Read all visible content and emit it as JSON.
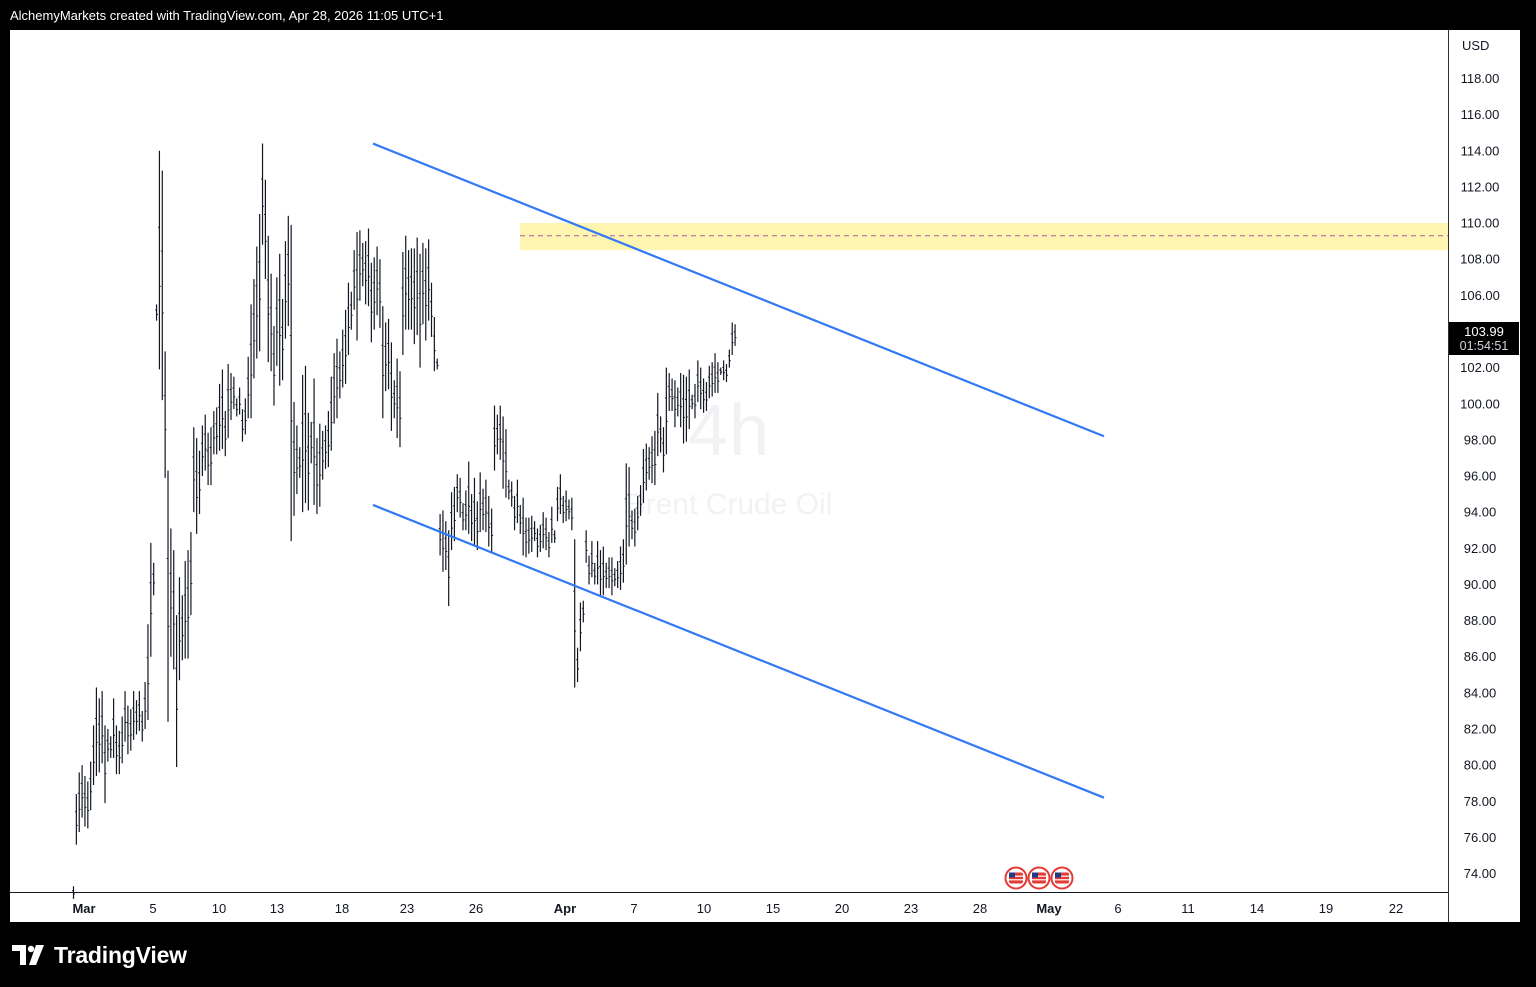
{
  "header": {
    "caption": "AlchemyMarkets created with TradingView.com, Apr 28, 2026 11:05 UTC+1"
  },
  "watermark": {
    "interval": "4h",
    "symbol": "Brent Crude Oil"
  },
  "price_axis": {
    "currency": "USD",
    "last_price": "103.99",
    "countdown": "01:54:51"
  },
  "footer": {
    "brand": "TradingView",
    "logo_icon": "tradingview-logo-icon"
  },
  "colors": {
    "background": "#ffffff",
    "frame": "#000000",
    "trendline": "#3179f5",
    "resistance_zone": "#fff4b0",
    "resistance_midline": "#a05fa6",
    "bars": "#131722"
  },
  "events": {
    "icon": "us-flag-icon",
    "count": 3
  },
  "chart_data": {
    "type": "ohlc",
    "title": "",
    "interval": "4h",
    "ylim": [
      73,
      119.5
    ],
    "y_ticks": [
      "74.00",
      "76.00",
      "78.00",
      "80.00",
      "82.00",
      "84.00",
      "86.00",
      "88.00",
      "90.00",
      "92.00",
      "94.00",
      "96.00",
      "98.00",
      "100.00",
      "102.00",
      "104.00",
      "106.00",
      "108.00",
      "110.00",
      "112.00",
      "114.00",
      "116.00",
      "118.00"
    ],
    "x_ticks": [
      "Mar",
      "5",
      "10",
      "13",
      "18",
      "23",
      "26",
      "Apr",
      "7",
      "10",
      "15",
      "20",
      "23",
      "28",
      "May",
      "6",
      "11",
      "14",
      "19",
      "22"
    ],
    "bars_hl": [
      [
        73.3,
        72.6
      ],
      [
        78.4,
        75.6
      ],
      [
        79.6,
        76.3
      ],
      [
        80.0,
        77.1
      ],
      [
        79.4,
        76.6
      ],
      [
        79.1,
        76.5
      ],
      [
        80.2,
        77.5
      ],
      [
        82.2,
        78.9
      ],
      [
        84.3,
        79.4
      ],
      [
        83.7,
        79.6
      ],
      [
        84.1,
        80.1
      ],
      [
        82.2,
        77.9
      ],
      [
        82.0,
        80.2
      ],
      [
        81.6,
        80.4
      ],
      [
        83.7,
        80.4
      ],
      [
        82.2,
        79.5
      ],
      [
        81.9,
        79.5
      ],
      [
        82.7,
        80.1
      ],
      [
        84.1,
        81.3
      ],
      [
        83.3,
        80.6
      ],
      [
        83.1,
        80.8
      ],
      [
        84.1,
        81.4
      ],
      [
        83.6,
        81.7
      ],
      [
        84.1,
        81.9
      ],
      [
        83.0,
        81.3
      ],
      [
        84.6,
        82.0
      ],
      [
        87.8,
        82.5
      ],
      [
        92.3,
        86.0
      ],
      [
        91.2,
        89.4
      ],
      [
        105.5,
        104.6
      ],
      [
        114.0,
        101.9
      ],
      [
        112.9,
        100.2
      ],
      [
        102.9,
        95.9
      ],
      [
        96.3,
        82.4
      ],
      [
        93.1,
        86.0
      ],
      [
        91.9,
        85.3
      ],
      [
        88.3,
        79.9
      ],
      [
        90.4,
        84.7
      ],
      [
        89.4,
        85.8
      ],
      [
        91.3,
        85.9
      ],
      [
        91.9,
        85.9
      ],
      [
        92.9,
        88.3
      ],
      [
        98.7,
        94.0
      ],
      [
        98.1,
        92.8
      ],
      [
        97.4,
        93.9
      ],
      [
        98.8,
        96.0
      ],
      [
        99.4,
        96.3
      ],
      [
        98.4,
        95.5
      ],
      [
        98.7,
        95.5
      ],
      [
        99.6,
        97.2
      ],
      [
        99.8,
        97.2
      ],
      [
        101.1,
        97.4
      ],
      [
        101.9,
        97.5
      ],
      [
        99.6,
        97.1
      ],
      [
        102.2,
        98.1
      ],
      [
        101.7,
        99.1
      ],
      [
        101.5,
        99.7
      ],
      [
        100.3,
        99.3
      ],
      [
        100.9,
        99.4
      ],
      [
        99.7,
        97.9
      ],
      [
        100.3,
        98.3
      ],
      [
        102.6,
        99.2
      ],
      [
        105.5,
        99.2
      ],
      [
        106.9,
        101.4
      ],
      [
        108.7,
        102.5
      ],
      [
        110.5,
        102.9
      ],
      [
        114.4,
        108.8
      ],
      [
        112.4,
        106.9
      ],
      [
        109.3,
        102.3
      ],
      [
        107.2,
        101.8
      ],
      [
        104.3,
        99.9
      ],
      [
        107.0,
        102.1
      ],
      [
        108.3,
        101.0
      ],
      [
        105.8,
        101.3
      ],
      [
        109.0,
        103.6
      ],
      [
        110.4,
        104.3
      ],
      [
        109.9,
        92.4
      ],
      [
        100.1,
        93.8
      ],
      [
        98.8,
        95.0
      ],
      [
        97.6,
        95.9
      ],
      [
        101.6,
        94.0
      ],
      [
        102.1,
        94.5
      ],
      [
        99.5,
        94.1
      ],
      [
        99.0,
        96.7
      ],
      [
        101.4,
        94.4
      ],
      [
        98.1,
        93.9
      ],
      [
        98.9,
        94.3
      ],
      [
        98.5,
        95.8
      ],
      [
        98.8,
        96.4
      ],
      [
        99.6,
        96.5
      ],
      [
        101.5,
        97.4
      ],
      [
        102.8,
        98.9
      ],
      [
        103.6,
        99.2
      ],
      [
        102.9,
        100.3
      ],
      [
        104.1,
        100.9
      ],
      [
        105.2,
        101.1
      ],
      [
        106.7,
        102.7
      ],
      [
        106.2,
        104.1
      ],
      [
        108.5,
        105.2
      ],
      [
        109.5,
        103.5
      ],
      [
        109.6,
        105.7
      ],
      [
        108.9,
        106.5
      ],
      [
        109.0,
        105.5
      ],
      [
        109.7,
        105.4
      ],
      [
        107.8,
        103.4
      ],
      [
        108.1,
        104.1
      ],
      [
        108.7,
        104.9
      ],
      [
        108.0,
        104.2
      ],
      [
        105.4,
        99.2
      ],
      [
        104.5,
        100.7
      ],
      [
        104.7,
        100.8
      ],
      [
        103.4,
        98.5
      ],
      [
        101.3,
        99.2
      ],
      [
        102.5,
        98.1
      ],
      [
        101.8,
        97.6
      ],
      [
        108.4,
        102.7
      ],
      [
        109.3,
        104.1
      ],
      [
        108.5,
        104.1
      ],
      [
        108.6,
        104.1
      ],
      [
        108.6,
        103.3
      ],
      [
        109.2,
        103.8
      ],
      [
        108.3,
        102.0
      ],
      [
        108.9,
        104.4
      ],
      [
        108.6,
        103.5
      ],
      [
        109.1,
        104.6
      ],
      [
        106.7,
        103.7
      ],
      [
        104.8,
        101.8
      ],
      [
        102.5,
        101.9
      ],
      [
        93.9,
        91.6
      ],
      [
        94.1,
        90.7
      ],
      [
        93.5,
        90.8
      ],
      [
        93.0,
        88.8
      ],
      [
        95.1,
        91.9
      ],
      [
        95.4,
        92.4
      ],
      [
        96.1,
        94.0
      ],
      [
        95.9,
        93.7
      ],
      [
        94.5,
        93.0
      ],
      [
        95.2,
        93.0
      ],
      [
        96.8,
        92.8
      ],
      [
        95.0,
        92.4
      ],
      [
        95.9,
        92.1
      ],
      [
        94.6,
        91.9
      ],
      [
        96.2,
        92.9
      ],
      [
        95.3,
        93.0
      ],
      [
        95.8,
        92.9
      ],
      [
        94.9,
        92.1
      ],
      [
        94.2,
        91.8
      ],
      [
        99.9,
        96.3
      ],
      [
        99.4,
        97.2
      ],
      [
        99.9,
        96.9
      ],
      [
        99.3,
        95.3
      ],
      [
        98.6,
        94.8
      ],
      [
        95.8,
        94.7
      ],
      [
        95.7,
        94.3
      ],
      [
        94.9,
        93.0
      ],
      [
        95.8,
        93.4
      ],
      [
        94.4,
        92.8
      ],
      [
        94.8,
        91.6
      ],
      [
        93.7,
        91.5
      ],
      [
        93.7,
        91.7
      ],
      [
        93.8,
        91.8
      ],
      [
        93.5,
        92.4
      ],
      [
        93.1,
        91.5
      ],
      [
        93.3,
        91.8
      ],
      [
        94.0,
        92.0
      ],
      [
        93.7,
        91.9
      ],
      [
        92.9,
        91.5
      ],
      [
        94.3,
        92.3
      ],
      [
        93.0,
        92.3
      ],
      [
        95.4,
        93.5
      ],
      [
        96.1,
        93.9
      ],
      [
        94.9,
        93.4
      ],
      [
        95.2,
        93.5
      ],
      [
        94.7,
        93.6
      ],
      [
        94.8,
        93.0
      ],
      [
        92.5,
        84.3
      ],
      [
        86.5,
        84.6
      ],
      [
        89.0,
        86.3
      ],
      [
        89.1,
        87.9
      ],
      [
        93.0,
        91.2
      ],
      [
        91.6,
        90.0
      ],
      [
        92.4,
        90.4
      ],
      [
        91.2,
        90.0
      ],
      [
        92.4,
        90.0
      ],
      [
        91.9,
        89.3
      ],
      [
        92.1,
        89.4
      ],
      [
        91.2,
        89.8
      ],
      [
        91.5,
        89.8
      ],
      [
        91.5,
        89.4
      ],
      [
        90.9,
        89.9
      ],
      [
        91.3,
        89.8
      ],
      [
        92.1,
        89.7
      ],
      [
        92.5,
        90.1
      ],
      [
        96.7,
        91.1
      ],
      [
        96.5,
        92.1
      ],
      [
        94.1,
        92.5
      ],
      [
        94.2,
        92.1
      ],
      [
        94.9,
        93.0
      ],
      [
        95.5,
        93.8
      ],
      [
        97.5,
        94.5
      ],
      [
        97.8,
        95.2
      ],
      [
        97.6,
        95.8
      ],
      [
        98.2,
        95.6
      ],
      [
        98.5,
        95.5
      ],
      [
        100.6,
        97.1
      ],
      [
        99.3,
        97.3
      ],
      [
        98.7,
        96.2
      ],
      [
        102.0,
        97.2
      ],
      [
        101.7,
        99.6
      ],
      [
        101.4,
        99.6
      ],
      [
        101.3,
        98.7
      ],
      [
        100.9,
        99.3
      ],
      [
        101.7,
        98.7
      ],
      [
        101.6,
        97.8
      ],
      [
        101.5,
        97.9
      ],
      [
        101.9,
        98.6
      ],
      [
        100.5,
        99.7
      ],
      [
        101.1,
        99.2
      ],
      [
        102.4,
        100.1
      ],
      [
        102.0,
        99.7
      ],
      [
        101.4,
        99.5
      ],
      [
        101.2,
        99.6
      ],
      [
        102.1,
        100.3
      ],
      [
        102.3,
        100.4
      ],
      [
        102.8,
        100.6
      ],
      [
        102.3,
        100.6
      ],
      [
        102.0,
        101.6
      ],
      [
        102.4,
        101.3
      ],
      [
        102.2,
        101.2
      ],
      [
        103.0,
        102.0
      ],
      [
        104.5,
        102.7
      ],
      [
        104.4,
        103.2
      ]
    ],
    "trend_channel": {
      "upper": [
        {
          "date": "Mar 20",
          "price": 114.4
        },
        {
          "date": "May 6",
          "price": 98.2
        }
      ],
      "lower": [
        {
          "date": "Mar 20",
          "price": 94.4
        },
        {
          "date": "May 6",
          "price": 78.2
        }
      ]
    },
    "resistance_zone": {
      "from": 108.5,
      "to": 110.0,
      "midline": 109.3
    },
    "grid": false
  }
}
